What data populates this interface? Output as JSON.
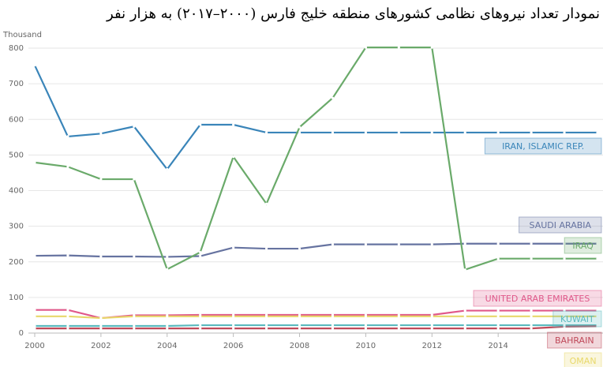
{
  "chart_data": {
    "type": "line",
    "title": "نمودار تعداد نیروهای نظامی کشورهای منطقه خلیج فارس (۲۰۰۰–۲۰۱۷) به هزار نفر",
    "y_label": "Thousand",
    "x": [
      2000,
      2001,
      2002,
      2003,
      2004,
      2005,
      2006,
      2007,
      2008,
      2009,
      2010,
      2011,
      2012,
      2013,
      2014,
      2015,
      2016,
      2017
    ],
    "xlim": [
      2000,
      2017
    ],
    "xticks": [
      2000,
      2002,
      2004,
      2006,
      2008,
      2010,
      2012,
      2014
    ],
    "ylim": [
      0,
      800
    ],
    "yticks": [
      0,
      100,
      200,
      300,
      400,
      500,
      600,
      700,
      800
    ],
    "grid": true,
    "series": [
      {
        "name": "IRAN, ISLAMIC REP.",
        "color": "#3a85b9",
        "values": [
          752,
          552,
          560,
          580,
          460,
          585,
          585,
          563,
          563,
          563,
          563,
          563,
          563,
          563,
          563,
          563,
          563,
          563
        ]
      },
      {
        "name": "SAUDI ARABIA",
        "color": "#6673a0",
        "values": [
          217,
          218,
          215,
          215,
          214,
          216,
          240,
          237,
          237,
          249,
          249,
          249,
          249,
          251,
          251,
          251,
          251,
          251
        ]
      },
      {
        "name": "IRAQ",
        "color": "#6aaa6a",
        "values": [
          479,
          467,
          432,
          432,
          179,
          227,
          495,
          363,
          578,
          660,
          802,
          802,
          802,
          178,
          209,
          209,
          209,
          209
        ]
      },
      {
        "name": "UNITED ARAB EMIRATES",
        "color": "#e0588a",
        "values": [
          65,
          65,
          42,
          50,
          50,
          51,
          51,
          51,
          51,
          51,
          51,
          51,
          51,
          63,
          63,
          63,
          63,
          63
        ]
      },
      {
        "name": "KUWAIT",
        "color": "#5ab9bd",
        "values": [
          20,
          20,
          20,
          20,
          20,
          22,
          22,
          22,
          22,
          22,
          22,
          22,
          22,
          22,
          22,
          22,
          22,
          22
        ]
      },
      {
        "name": "BAHRAIN",
        "color": "#c04a5a",
        "values": [
          13,
          13,
          13,
          13,
          13,
          13,
          13,
          13,
          13,
          13,
          13,
          13,
          13,
          13,
          13,
          13,
          18,
          19
        ]
      },
      {
        "name": "OMAN",
        "color": "#e8d86a",
        "values": [
          47,
          47,
          42,
          47,
          47,
          47,
          47,
          47,
          47,
          47,
          47,
          47,
          47,
          47,
          47,
          47,
          47,
          47
        ]
      }
    ]
  }
}
